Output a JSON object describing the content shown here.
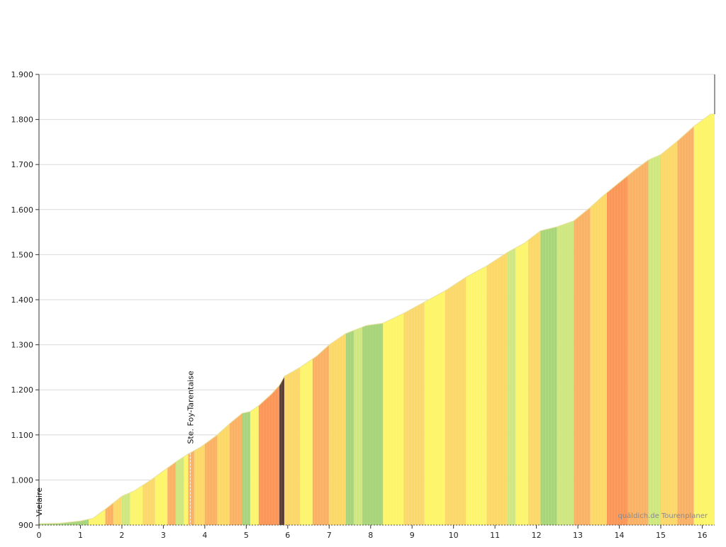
{
  "chart_data": {
    "type": "area",
    "title": "",
    "xlabel": "",
    "ylabel": "",
    "xlim": [
      0,
      16.3
    ],
    "ylim": [
      900,
      1900
    ],
    "x_ticks": [
      0,
      1,
      2,
      3,
      4,
      5,
      6,
      7,
      8,
      9,
      10,
      11,
      12,
      13,
      14,
      15,
      16
    ],
    "y_ticks": [
      {
        "value": 900,
        "label": "900"
      },
      {
        "value": 1000,
        "label": "1.000"
      },
      {
        "value": 1100,
        "label": "1.100"
      },
      {
        "value": 1200,
        "label": "1.200"
      },
      {
        "value": 1300,
        "label": "1.300"
      },
      {
        "value": 1400,
        "label": "1.400"
      },
      {
        "value": 1500,
        "label": "1.500"
      },
      {
        "value": 1600,
        "label": "1.600"
      },
      {
        "value": 1700,
        "label": "1.700"
      },
      {
        "value": 1800,
        "label": "1.800"
      },
      {
        "value": 1900,
        "label": "1.900"
      }
    ],
    "grid": true,
    "legend": "none",
    "gradient_colors": {
      "flat": "#a8d47a",
      "low": "#cfe77f",
      "moderate": "#fdf56a",
      "medium": "#fbd868",
      "steep": "#fbb164",
      "very_steep": "#fb9656",
      "extreme": "#5a3d33"
    },
    "profile": [
      [
        0.0,
        903
      ],
      [
        0.5,
        904
      ],
      [
        1.0,
        909
      ],
      [
        1.3,
        915
      ],
      [
        1.6,
        935
      ],
      [
        2.0,
        964
      ],
      [
        2.3,
        976
      ],
      [
        2.7,
        1000
      ],
      [
        3.0,
        1020
      ],
      [
        3.3,
        1040
      ],
      [
        3.6,
        1058
      ],
      [
        3.9,
        1073
      ],
      [
        4.3,
        1100
      ],
      [
        4.6,
        1125
      ],
      [
        4.9,
        1148
      ],
      [
        5.1,
        1152
      ],
      [
        5.3,
        1165
      ],
      [
        5.6,
        1190
      ],
      [
        5.8,
        1210
      ],
      [
        5.92,
        1230
      ],
      [
        6.3,
        1250
      ],
      [
        6.7,
        1275
      ],
      [
        7.0,
        1300
      ],
      [
        7.4,
        1325
      ],
      [
        7.6,
        1332
      ],
      [
        7.9,
        1343
      ],
      [
        8.3,
        1348
      ],
      [
        8.8,
        1370
      ],
      [
        9.3,
        1395
      ],
      [
        9.8,
        1420
      ],
      [
        10.3,
        1450
      ],
      [
        10.8,
        1475
      ],
      [
        11.3,
        1505
      ],
      [
        11.7,
        1525
      ],
      [
        12.1,
        1553
      ],
      [
        12.5,
        1562
      ],
      [
        12.9,
        1575
      ],
      [
        13.3,
        1605
      ],
      [
        13.6,
        1630
      ],
      [
        14.0,
        1660
      ],
      [
        14.4,
        1690
      ],
      [
        14.7,
        1710
      ],
      [
        15.0,
        1722
      ],
      [
        15.4,
        1752
      ],
      [
        15.8,
        1785
      ],
      [
        16.2,
        1812
      ]
    ],
    "bands": [
      [
        0.0,
        1.2,
        "flat"
      ],
      [
        1.2,
        1.6,
        "moderate"
      ],
      [
        1.6,
        1.8,
        "steep"
      ],
      [
        1.8,
        2.0,
        "medium"
      ],
      [
        2.0,
        2.2,
        "low"
      ],
      [
        2.2,
        2.5,
        "moderate"
      ],
      [
        2.5,
        2.8,
        "medium"
      ],
      [
        2.8,
        3.1,
        "moderate"
      ],
      [
        3.1,
        3.3,
        "steep"
      ],
      [
        3.3,
        3.5,
        "low"
      ],
      [
        3.5,
        3.6,
        "moderate"
      ],
      [
        3.6,
        3.75,
        "steep"
      ],
      [
        3.75,
        4.0,
        "medium"
      ],
      [
        4.0,
        4.3,
        "steep"
      ],
      [
        4.3,
        4.6,
        "medium"
      ],
      [
        4.6,
        4.9,
        "steep"
      ],
      [
        4.9,
        5.1,
        "flat"
      ],
      [
        5.1,
        5.3,
        "moderate"
      ],
      [
        5.3,
        5.8,
        "very_steep"
      ],
      [
        5.8,
        5.92,
        "extreme"
      ],
      [
        5.92,
        6.3,
        "medium"
      ],
      [
        6.3,
        6.6,
        "moderate"
      ],
      [
        6.6,
        7.0,
        "steep"
      ],
      [
        7.0,
        7.4,
        "medium"
      ],
      [
        7.4,
        7.6,
        "flat"
      ],
      [
        7.6,
        7.8,
        "low"
      ],
      [
        7.8,
        8.3,
        "flat"
      ],
      [
        8.3,
        8.8,
        "moderate"
      ],
      [
        8.8,
        9.3,
        "medium"
      ],
      [
        9.3,
        9.8,
        "moderate"
      ],
      [
        9.8,
        10.3,
        "medium"
      ],
      [
        10.3,
        10.8,
        "moderate"
      ],
      [
        10.8,
        11.3,
        "medium"
      ],
      [
        11.3,
        11.5,
        "low"
      ],
      [
        11.5,
        11.8,
        "moderate"
      ],
      [
        11.8,
        12.1,
        "medium"
      ],
      [
        12.1,
        12.5,
        "flat"
      ],
      [
        12.5,
        12.9,
        "low"
      ],
      [
        12.9,
        13.3,
        "steep"
      ],
      [
        13.3,
        13.7,
        "medium"
      ],
      [
        13.7,
        14.2,
        "very_steep"
      ],
      [
        14.2,
        14.7,
        "steep"
      ],
      [
        14.7,
        15.0,
        "low"
      ],
      [
        15.0,
        15.4,
        "medium"
      ],
      [
        15.4,
        15.8,
        "steep"
      ],
      [
        15.8,
        16.3,
        "moderate"
      ]
    ],
    "places": [
      {
        "x": 0.0,
        "label": "Vielaire"
      },
      {
        "x": 3.65,
        "label": "Ste. Foy-Tarentaise"
      }
    ],
    "credit": "quäldich.de Tourenplaner"
  }
}
